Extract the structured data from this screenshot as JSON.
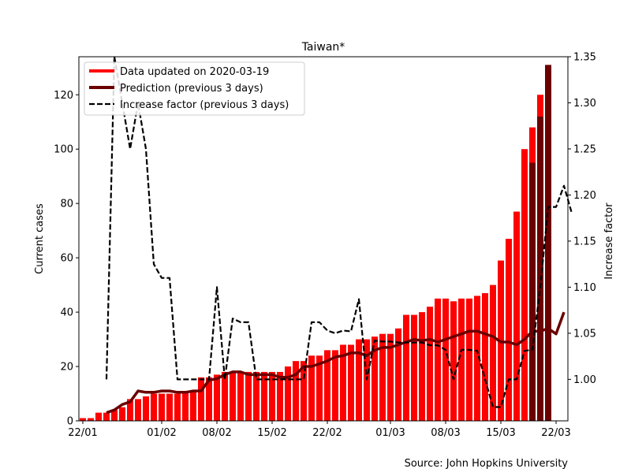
{
  "chart_data": {
    "type": "bar",
    "title": "Taiwan*",
    "ylabel": "Current cases",
    "ylabel_right": "Increase factor",
    "source": "Source: John Hopkins University",
    "ylim": [
      0,
      134
    ],
    "ylim_right": [
      0.955,
      1.35
    ],
    "y_ticks": [
      0,
      20,
      40,
      60,
      80,
      100,
      120
    ],
    "y_ticks_right": [
      "1.00",
      "1.05",
      "1.10",
      "1.15",
      "1.20",
      "1.25",
      "1.30",
      "1.35"
    ],
    "x_tick_labels": [
      {
        "label": "22/01",
        "day": 0
      },
      {
        "label": "01/02",
        "day": 10
      },
      {
        "label": "08/02",
        "day": 17
      },
      {
        "label": "15/02",
        "day": 24
      },
      {
        "label": "22/02",
        "day": 31
      },
      {
        "label": "01/03",
        "day": 39
      },
      {
        "label": "08/03",
        "day": 46
      },
      {
        "label": "15/03",
        "day": 53
      },
      {
        "label": "22/03",
        "day": 60
      }
    ],
    "legend": {
      "position": "top-left",
      "entries": [
        {
          "label": "Data updated on 2020-03-19",
          "color": "#ff0000",
          "style": "solid"
        },
        {
          "label": "Prediction (previous 3 days)",
          "color": "#6b0000",
          "style": "solid"
        },
        {
          "label": "Increase factor (previous 3 days)",
          "color": "#000000",
          "style": "dashed"
        }
      ]
    },
    "series": [
      {
        "name": "Data updated on 2020-03-19",
        "kind": "bar",
        "color": "#ff0000",
        "start_date": "22/01",
        "values": [
          1,
          1,
          3,
          3,
          4,
          5,
          8,
          8,
          9,
          10,
          10,
          10,
          10,
          11,
          11,
          16,
          16,
          17,
          18,
          18,
          18,
          18,
          18,
          18,
          18,
          18,
          20,
          22,
          22,
          24,
          24,
          26,
          26,
          28,
          28,
          30,
          30,
          31,
          32,
          32,
          34,
          39,
          39,
          40,
          42,
          45,
          45,
          44,
          45,
          45,
          46,
          47,
          50,
          59,
          67,
          77,
          100,
          108,
          120
        ]
      },
      {
        "name": "Prediction (previous 3 days)",
        "kind": "bar",
        "color": "#6b0000",
        "start_date": "19/03",
        "values": [
          95,
          112,
          131
        ]
      }
    ],
    "extra_series": {
      "prediction_line": {
        "color": "#6b0000",
        "start_date": "25/01",
        "values": [
          3,
          4,
          6,
          7,
          11,
          10.5,
          10.5,
          11,
          11,
          10.5,
          10.5,
          11,
          11,
          15,
          15.5,
          17,
          18,
          18,
          17,
          17,
          17,
          17,
          16,
          16,
          17,
          20,
          20,
          21,
          22,
          23.5,
          24,
          25,
          25,
          24,
          26,
          27,
          27,
          28,
          29,
          30,
          29.5,
          30,
          29,
          30,
          31,
          32,
          33,
          33,
          32,
          31,
          29,
          29,
          28,
          30,
          33,
          33,
          34,
          32,
          40
        ]
      },
      "increase_factor": {
        "color": "#000000",
        "start_date": "25/01",
        "values": [
          1.0,
          1.35,
          1.3,
          1.25,
          1.3,
          1.25,
          1.125,
          1.11,
          1.11,
          1.0,
          1.0,
          1.0,
          1.0,
          1.0,
          1.1,
          1.0,
          1.066,
          1.062,
          1.062,
          1.0,
          1.0,
          1.0,
          1.0,
          1.0,
          1.0,
          1.0,
          1.062,
          1.062,
          1.053,
          1.05,
          1.053,
          1.052,
          1.087,
          1.0,
          1.042,
          1.041,
          1.041,
          1.04,
          1.04,
          1.04,
          1.04,
          1.037,
          1.037,
          1.032,
          1.0,
          1.032,
          1.032,
          1.031,
          1.0,
          0.97,
          0.97,
          1.0,
          1.0,
          1.031,
          1.032,
          1.1,
          1.187,
          1.187,
          1.21,
          1.18
        ]
      }
    }
  }
}
